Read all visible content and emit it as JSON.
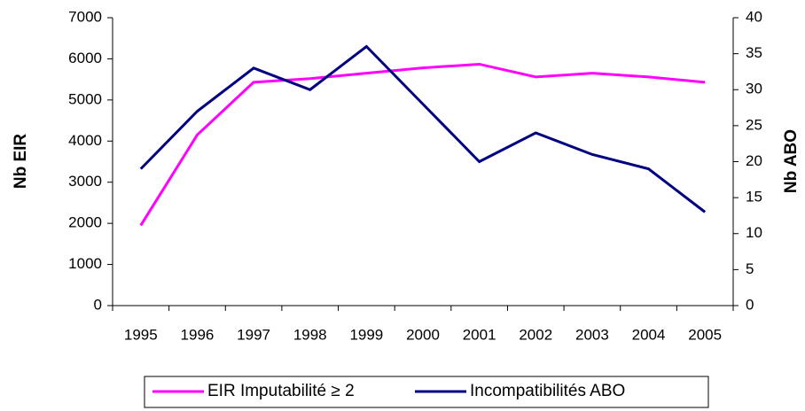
{
  "chart_data": {
    "type": "line",
    "categories": [
      "1995",
      "1996",
      "1997",
      "1998",
      "1999",
      "2000",
      "2001",
      "2002",
      "2003",
      "2004",
      "2005"
    ],
    "series": [
      {
        "name": "EIR Imputabilité ≥ 2",
        "color": "#ff00ff",
        "values": [
          1950,
          4150,
          5430,
          5520,
          5650,
          5780,
          5870,
          5560,
          5650,
          5560,
          5430
        ]
      },
      {
        "name": "Incompatibilités ABO",
        "color": "#000080",
        "axis": "y2",
        "values": [
          19,
          27,
          33,
          30,
          36,
          28,
          20,
          24,
          21,
          19,
          13
        ]
      }
    ],
    "ylabel": "Nb EIR",
    "y2label": "Nb ABO",
    "ylim": [
      0,
      7000
    ],
    "yticks": [
      0,
      1000,
      2000,
      3000,
      4000,
      5000,
      6000,
      7000
    ],
    "y2lim": [
      0,
      40
    ],
    "y2ticks": [
      0,
      5,
      10,
      15,
      20,
      25,
      30,
      35,
      40
    ],
    "legend": "bottom"
  }
}
